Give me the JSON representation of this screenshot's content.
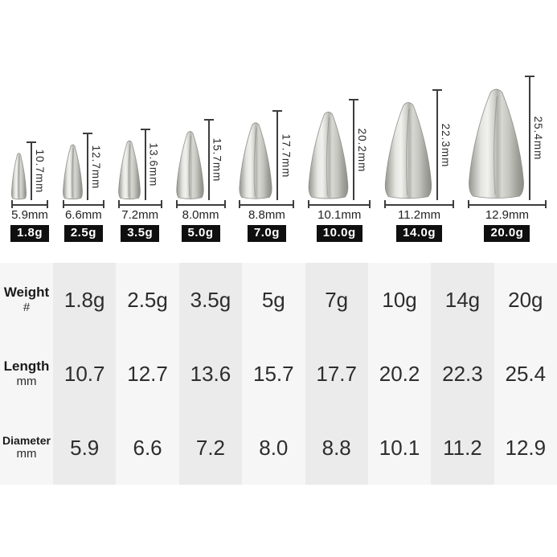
{
  "figures": {
    "items": [
      {
        "badge": "1.8g",
        "length_label": "10.7mm",
        "diameter_label": "5.9mm",
        "length_mm": 10.7,
        "diameter_mm": 5.9
      },
      {
        "badge": "2.5g",
        "length_label": "12.7mm",
        "diameter_label": "6.6mm",
        "length_mm": 12.7,
        "diameter_mm": 6.6
      },
      {
        "badge": "3.5g",
        "length_label": "13.6mm",
        "diameter_label": "7.2mm",
        "length_mm": 13.6,
        "diameter_mm": 7.2
      },
      {
        "badge": "5.0g",
        "length_label": "15.7mm",
        "diameter_label": "8.0mm",
        "length_mm": 15.7,
        "diameter_mm": 8.0
      },
      {
        "badge": "7.0g",
        "length_label": "17.7mm",
        "diameter_label": "8.8mm",
        "length_mm": 17.7,
        "diameter_mm": 8.8
      },
      {
        "badge": "10.0g",
        "length_label": "20.2mm",
        "diameter_label": "10.1mm",
        "length_mm": 20.2,
        "diameter_mm": 10.1
      },
      {
        "badge": "14.0g",
        "length_label": "22.3mm",
        "diameter_label": "11.2mm",
        "length_mm": 22.3,
        "diameter_mm": 11.2
      },
      {
        "badge": "20.0g",
        "length_label": "25.4mm",
        "diameter_label": "12.9mm",
        "length_mm": 25.4,
        "diameter_mm": 12.9
      }
    ]
  },
  "table": {
    "rows": [
      {
        "label": "Weight",
        "sublabel": "#",
        "values": [
          "1.8g",
          "2.5g",
          "3.5g",
          "5g",
          "7g",
          "10g",
          "14g",
          "20g"
        ]
      },
      {
        "label": "Length",
        "sublabel": "mm",
        "values": [
          "10.7",
          "12.7",
          "13.6",
          "15.7",
          "17.7",
          "20.2",
          "22.3",
          "25.4"
        ]
      },
      {
        "label": "Diameter",
        "sublabel": "mm",
        "values": [
          "5.9",
          "6.6",
          "7.2",
          "8.0",
          "8.8",
          "10.1",
          "11.2",
          "12.9"
        ]
      }
    ]
  },
  "colors": {
    "badge_bg": "#0f0f0f",
    "badge_text": "#ffffff",
    "dimension_line": "#3d3d3d",
    "table_bg": "#f6f6f6",
    "table_stripe": "#ebebeb",
    "metal_light": "#f1f1ee",
    "metal_dark": "#8c8c86"
  }
}
